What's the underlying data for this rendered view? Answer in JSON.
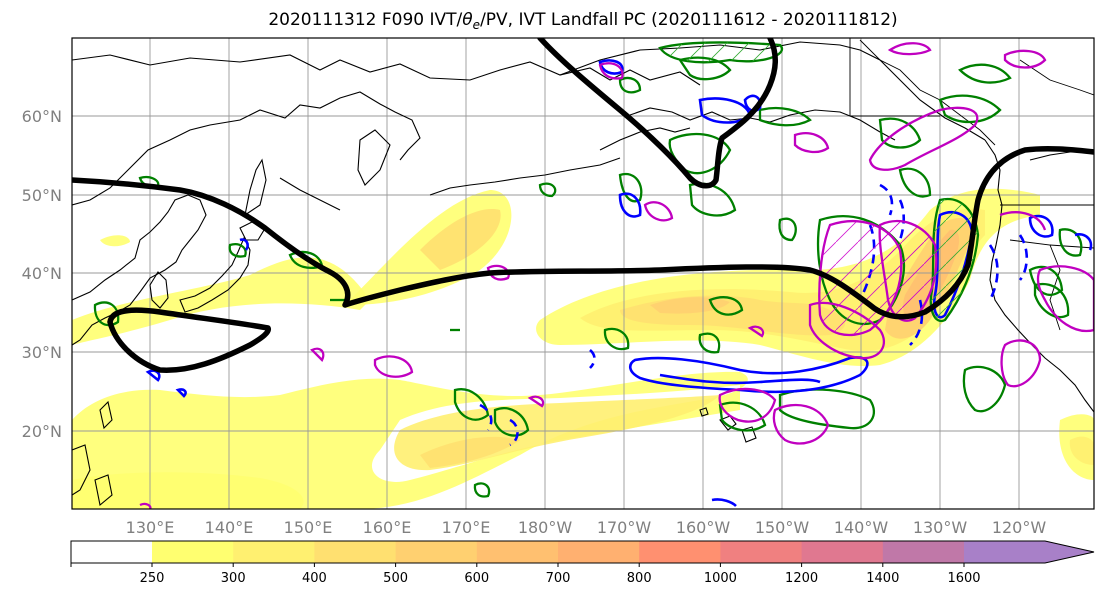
{
  "title_text": "2020111312 F090 IVT/θe/PV, IVT Landfall PC (2020111612 - 2020111812)",
  "title": {
    "pre": "2020111312 F090 IVT/",
    "theta": "θ",
    "sub": "e",
    "post": "/PV, IVT Landfall PC (2020111612 - 2020111812)"
  },
  "map": {
    "lon_labels": [
      "130°E",
      "140°E",
      "150°E",
      "160°E",
      "170°E",
      "180°W",
      "170°W",
      "160°W",
      "150°W",
      "140°W",
      "130°W",
      "120°W"
    ],
    "lat_labels": [
      "60°N",
      "50°N",
      "40°N",
      "30°N",
      "20°N"
    ],
    "field": "IVT",
    "contours": [
      "θe",
      "PV",
      "IVT Landfall PC"
    ]
  },
  "colorbar": {
    "ticks": [
      "250",
      "300",
      "400",
      "500",
      "600",
      "700",
      "800",
      "1000",
      "1200",
      "1400",
      "1600"
    ],
    "colors": [
      "#ffff70",
      "#fff070",
      "#ffe070",
      "#ffd070",
      "#ffc070",
      "#ffb070",
      "#ff9070",
      "#f08080",
      "#e07890",
      "#c078a8",
      "#a880c8"
    ],
    "extend": "max"
  }
}
